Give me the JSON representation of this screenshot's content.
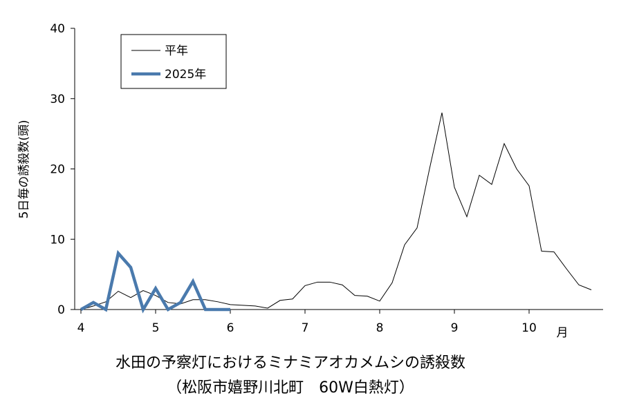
{
  "chart_data": {
    "type": "line",
    "title": "水田の予察灯におけるミナミアオカメムシの誘殺数",
    "subtitle": "（松阪市嬉野川北町　60W白熱灯）",
    "y_label": "5日毎の誘殺数(頭)",
    "x_label": "月",
    "categories": [
      "4",
      null,
      null,
      null,
      null,
      null,
      "5",
      null,
      null,
      null,
      null,
      null,
      "6",
      null,
      null,
      null,
      null,
      null,
      "7",
      null,
      null,
      null,
      null,
      null,
      "8",
      null,
      null,
      null,
      null,
      null,
      "9",
      null,
      null,
      null,
      null,
      null,
      "10",
      null,
      null,
      null,
      null,
      null
    ],
    "series": [
      {
        "name": "平年",
        "color": "#000000",
        "width": 1,
        "values": [
          0,
          0.5,
          1.1,
          2.6,
          1.7,
          2.7,
          2.0,
          1.0,
          0.8,
          1.4,
          1.4,
          1.1,
          0.7,
          0.6,
          0.5,
          0.2,
          1.3,
          1.5,
          3.4,
          3.9,
          3.9,
          3.5,
          2.0,
          1.9,
          1.2,
          3.8,
          9.2,
          11.6,
          20,
          28,
          17.4,
          13.2,
          19.1,
          17.8,
          23.6,
          20,
          17.6,
          8.3,
          8.2,
          5.8,
          3.5,
          2.8
        ]
      },
      {
        "name": "2025年",
        "color": "#4a7aad",
        "width": 4.5,
        "values": [
          0,
          1,
          0,
          8,
          6,
          0,
          3,
          0,
          1,
          4,
          0,
          0,
          0,
          null,
          null,
          null,
          null,
          null,
          null,
          null,
          null,
          null,
          null,
          null,
          null,
          null,
          null,
          null,
          null,
          null,
          null,
          null,
          null,
          null,
          null,
          null,
          null,
          null,
          null,
          null,
          null,
          null
        ]
      }
    ],
    "ylim": [
      0,
      40
    ],
    "yticks": [
      0,
      10,
      20,
      30,
      40
    ],
    "legend": "upper-left"
  }
}
